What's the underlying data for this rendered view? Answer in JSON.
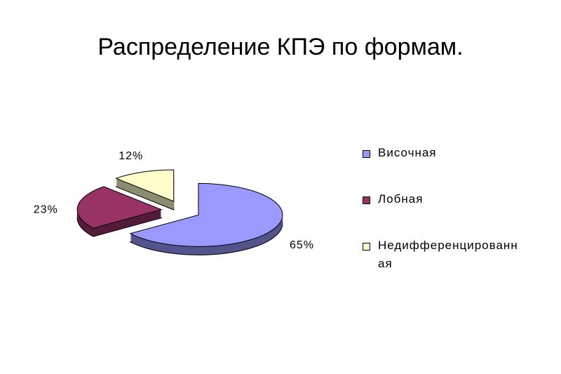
{
  "chart_data": {
    "type": "pie",
    "title": "Распределение КПЭ по формам.",
    "categories": [
      "Височная",
      "Лобная",
      "Недифференцированная"
    ],
    "values": [
      65,
      23,
      12
    ],
    "value_labels": [
      "65%",
      "23%",
      "12%"
    ],
    "colors": [
      "#9999ff",
      "#993366",
      "#ffffcc"
    ],
    "legend": "right"
  }
}
